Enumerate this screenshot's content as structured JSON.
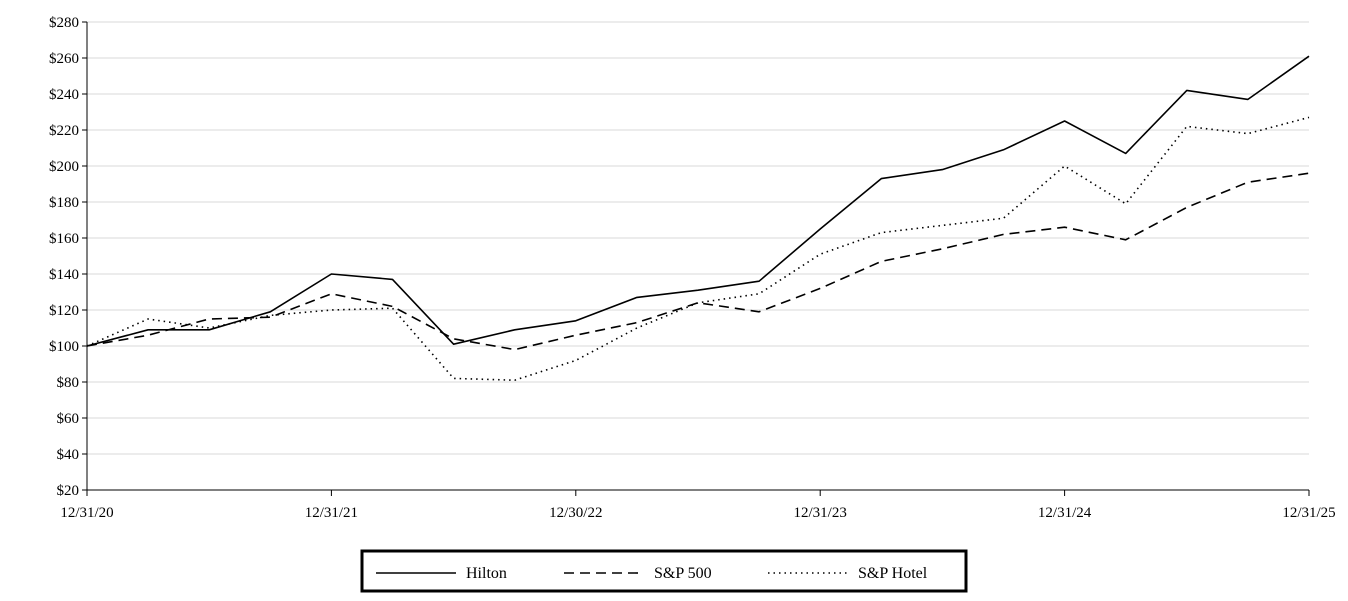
{
  "chart_data": {
    "type": "line",
    "title": "",
    "xlabel": "",
    "ylabel": "",
    "ylim": [
      20,
      280
    ],
    "yticks": [
      20,
      40,
      60,
      80,
      100,
      120,
      140,
      160,
      180,
      200,
      220,
      240,
      260,
      280
    ],
    "ytick_labels": [
      "$20",
      "$40",
      "$60",
      "$80",
      "$100",
      "$120",
      "$140",
      "$160",
      "$180",
      "$200",
      "$220",
      "$240",
      "$260",
      "$280"
    ],
    "x_labels": [
      "12/31/20",
      "12/31/21",
      "12/30/22",
      "12/31/23",
      "12/31/24",
      "12/31/25"
    ],
    "x_label_positions": [
      0,
      4,
      8,
      12,
      16,
      20
    ],
    "x_count": 21,
    "grid": "horizontal",
    "legend_position": "bottom-center",
    "series": [
      {
        "name": "Hilton",
        "style": "solid",
        "values": [
          100,
          109,
          109,
          119,
          140,
          137,
          101,
          109,
          114,
          127,
          131,
          136,
          165,
          193,
          198,
          209,
          225,
          207,
          242,
          237,
          261
        ]
      },
      {
        "name": "S&P 500",
        "style": "dashed",
        "values": [
          100,
          106,
          115,
          116,
          129,
          122,
          104,
          98,
          106,
          113,
          124,
          119,
          132,
          147,
          154,
          162,
          166,
          159,
          177,
          191,
          196
        ]
      },
      {
        "name": "S&P Hotel",
        "style": "dotted",
        "values": [
          100,
          115,
          110,
          117,
          120,
          121,
          82,
          81,
          92,
          110,
          124,
          129,
          151,
          163,
          167,
          171,
          200,
          179,
          222,
          218,
          227
        ]
      }
    ]
  }
}
